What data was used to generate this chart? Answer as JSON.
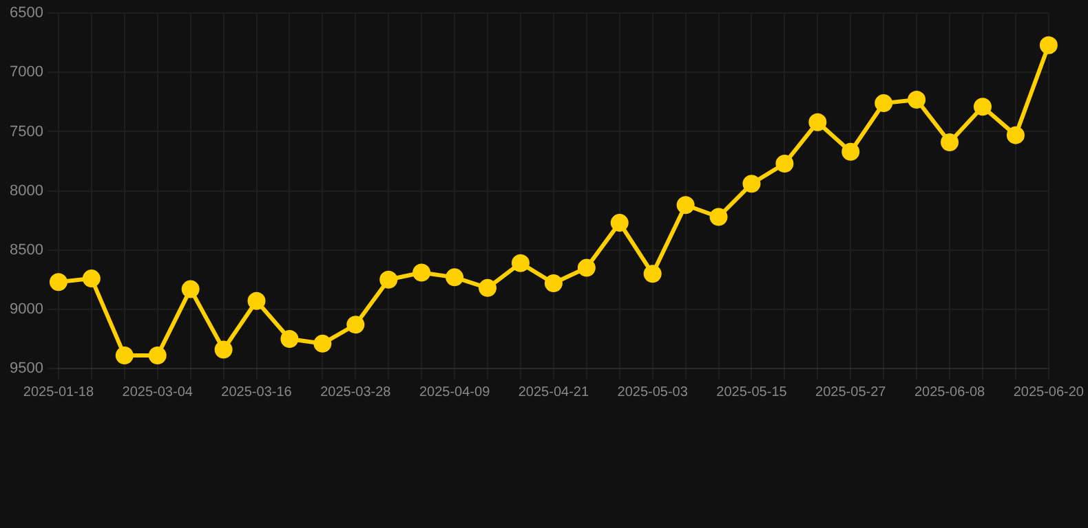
{
  "chart_data": {
    "type": "line",
    "categories": [
      "2025-01-18",
      null,
      null,
      "2025-03-04",
      null,
      null,
      "2025-03-16",
      null,
      null,
      "2025-03-28",
      null,
      null,
      "2025-04-09",
      null,
      null,
      "2025-04-21",
      null,
      null,
      "2025-05-03",
      null,
      null,
      "2025-05-15",
      null,
      null,
      "2025-05-27",
      null,
      null,
      "2025-06-08",
      null,
      null,
      "2025-06-20"
    ],
    "series": [
      {
        "color": "#ffd000",
        "values": [
          8770,
          8740,
          9390,
          9390,
          8830,
          9340,
          8930,
          9250,
          9290,
          9130,
          8750,
          8690,
          8730,
          8820,
          8610,
          8780,
          8650,
          8270,
          8700,
          8120,
          8220,
          7940,
          7770,
          7420,
          7670,
          7260,
          7230,
          7590,
          7290,
          7530,
          6770
        ]
      }
    ],
    "ylim": [
      9500,
      6500
    ],
    "yticks": [
      6500,
      7000,
      7500,
      8000,
      8500,
      9000,
      9500
    ],
    "grid": true,
    "marker": "circle",
    "line_style": "solid"
  }
}
